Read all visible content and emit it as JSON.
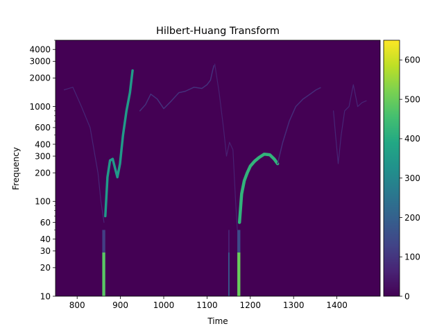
{
  "chart_data": {
    "type": "heatmap",
    "title": "Hilbert-Huang Transform",
    "xlabel": "Time",
    "ylabel": "Frequency",
    "xlim": [
      750,
      1500
    ],
    "ylim": [
      10,
      5000
    ],
    "y_scale": "log",
    "x_ticks": [
      800,
      900,
      1000,
      1100,
      1200,
      1300,
      1400
    ],
    "y_ticks": [
      10,
      20,
      30,
      40,
      60,
      100,
      200,
      300,
      400,
      600,
      1000,
      2000,
      3000,
      4000
    ],
    "colormap": "viridis",
    "colorbar": {
      "min": 0,
      "max": 650,
      "ticks": [
        0,
        100,
        200,
        300,
        400,
        500,
        600
      ]
    },
    "background_value": 0,
    "grid": false,
    "bands": [
      {
        "t0": 858,
        "t1": 865,
        "f0": 10,
        "f1": 29,
        "value": 480
      },
      {
        "t0": 858,
        "t1": 865,
        "f0": 29,
        "f1": 50,
        "value": 120
      },
      {
        "t0": 1149,
        "t1": 1152,
        "f0": 10,
        "f1": 29,
        "value": 180
      },
      {
        "t0": 1149,
        "t1": 1152,
        "f0": 29,
        "f1": 50,
        "value": 60
      },
      {
        "t0": 1170,
        "t1": 1177,
        "f0": 10,
        "f1": 29,
        "value": 500
      },
      {
        "t0": 1170,
        "t1": 1177,
        "f0": 29,
        "f1": 50,
        "value": 150
      }
    ],
    "ridges": [
      {
        "name": "ridge-a",
        "value": 70,
        "width": 1.2,
        "points": [
          [
            770,
            1500
          ],
          [
            790,
            1600
          ],
          [
            810,
            1000
          ],
          [
            830,
            600
          ],
          [
            848,
            200
          ],
          [
            855,
            100
          ],
          [
            862,
            60
          ]
        ]
      },
      {
        "name": "ridge-b",
        "value": 350,
        "width": 3.5,
        "points": [
          [
            865,
            70
          ],
          [
            870,
            180
          ],
          [
            876,
            270
          ],
          [
            882,
            280
          ],
          [
            888,
            220
          ],
          [
            893,
            180
          ],
          [
            899,
            250
          ],
          [
            906,
            500
          ],
          [
            914,
            900
          ],
          [
            922,
            1400
          ],
          [
            928,
            2400
          ]
        ]
      },
      {
        "name": "ridge-c",
        "value": 90,
        "width": 1.5,
        "points": [
          [
            945,
            900
          ],
          [
            958,
            1050
          ],
          [
            970,
            1350
          ],
          [
            985,
            1200
          ],
          [
            1000,
            950
          ],
          [
            1018,
            1150
          ],
          [
            1035,
            1400
          ],
          [
            1050,
            1450
          ],
          [
            1070,
            1600
          ],
          [
            1088,
            1550
          ],
          [
            1100,
            1700
          ],
          [
            1108,
            1900
          ],
          [
            1113,
            2400
          ],
          [
            1116,
            2700
          ]
        ]
      },
      {
        "name": "ridge-d",
        "value": 60,
        "width": 1.2,
        "points": [
          [
            1118,
            2800
          ],
          [
            1128,
            1400
          ],
          [
            1138,
            600
          ],
          [
            1145,
            300
          ],
          [
            1152,
            420
          ],
          [
            1160,
            350
          ],
          [
            1166,
            100
          ],
          [
            1170,
            50
          ]
        ]
      },
      {
        "name": "ridge-e",
        "value": 420,
        "width": 4.5,
        "points": [
          [
            1175,
            60
          ],
          [
            1180,
            120
          ],
          [
            1186,
            165
          ],
          [
            1193,
            200
          ],
          [
            1200,
            235
          ],
          [
            1210,
            265
          ],
          [
            1220,
            290
          ],
          [
            1232,
            315
          ],
          [
            1245,
            310
          ],
          [
            1255,
            280
          ],
          [
            1263,
            250
          ]
        ]
      },
      {
        "name": "ridge-f",
        "value": 80,
        "width": 1.5,
        "points": [
          [
            1263,
            250
          ],
          [
            1275,
            420
          ],
          [
            1290,
            700
          ],
          [
            1305,
            1000
          ],
          [
            1322,
            1200
          ],
          [
            1338,
            1350
          ],
          [
            1352,
            1500
          ],
          [
            1362,
            1580
          ]
        ]
      },
      {
        "name": "ridge-g",
        "value": 70,
        "width": 1.2,
        "points": [
          [
            1392,
            900
          ],
          [
            1397,
            500
          ],
          [
            1403,
            250
          ],
          [
            1410,
            500
          ],
          [
            1418,
            900
          ],
          [
            1428,
            1000
          ],
          [
            1438,
            1700
          ],
          [
            1448,
            1000
          ],
          [
            1458,
            1100
          ],
          [
            1468,
            1150
          ]
        ]
      }
    ]
  }
}
